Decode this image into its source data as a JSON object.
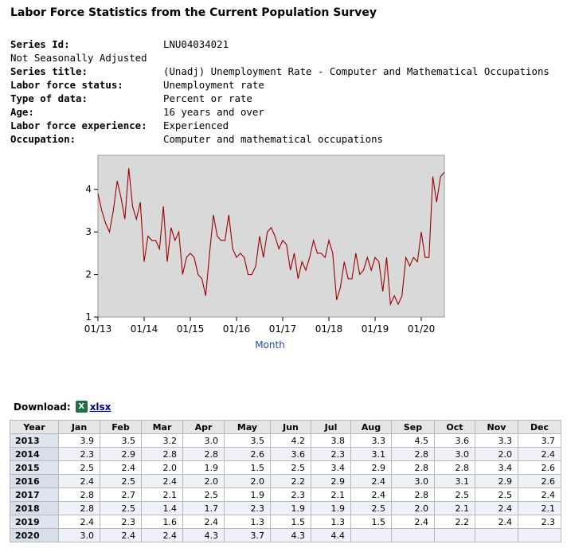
{
  "page_title": "Labor Force Statistics from the Current Population Survey",
  "series": {
    "series_id_label": "Series Id:",
    "series_id": "LNU04034021",
    "adjustment": "Not Seasonally Adjusted",
    "fields": [
      {
        "label": "Series title:",
        "value": "(Unadj) Unemployment Rate - Computer and Mathematical Occupations"
      },
      {
        "label": "Labor force status:",
        "value": "Unemployment rate"
      },
      {
        "label": "Type of data:",
        "value": "Percent or rate"
      },
      {
        "label": "Age:",
        "value": "16 years and over"
      },
      {
        "label": "Labor force experience:",
        "value": "Experienced"
      },
      {
        "label": "Occupation:",
        "value": "Computer and mathematical occupations"
      }
    ]
  },
  "chart_data": {
    "type": "line",
    "title": "",
    "xlabel": "Month",
    "ylabel": "",
    "ylim": [
      1,
      4.8
    ],
    "yticks": [
      "1",
      "2",
      "3",
      "4"
    ],
    "xticks": [
      "01/13",
      "01/14",
      "01/15",
      "01/16",
      "01/17",
      "01/18",
      "01/19",
      "01/20"
    ],
    "series": [
      {
        "name": "Unemployment rate",
        "color": "#990000",
        "values": [
          3.9,
          3.5,
          3.2,
          3.0,
          3.5,
          4.2,
          3.8,
          3.3,
          4.5,
          3.6,
          3.3,
          3.7,
          2.3,
          2.9,
          2.8,
          2.8,
          2.6,
          3.6,
          2.3,
          3.1,
          2.8,
          3.0,
          2.0,
          2.4,
          2.5,
          2.4,
          2.0,
          1.9,
          1.5,
          2.5,
          3.4,
          2.9,
          2.8,
          2.8,
          3.4,
          2.6,
          2.4,
          2.5,
          2.4,
          2.0,
          2.0,
          2.2,
          2.9,
          2.4,
          3.0,
          3.1,
          2.9,
          2.6,
          2.8,
          2.7,
          2.1,
          2.5,
          1.9,
          2.3,
          2.1,
          2.4,
          2.8,
          2.5,
          2.5,
          2.4,
          2.8,
          2.5,
          1.4,
          1.7,
          2.3,
          1.9,
          1.9,
          2.5,
          2.0,
          2.1,
          2.4,
          2.1,
          2.4,
          2.3,
          1.6,
          2.4,
          1.3,
          1.5,
          1.3,
          1.5,
          2.4,
          2.2,
          2.4,
          2.3,
          3.0,
          2.4,
          2.4,
          4.3,
          3.7,
          4.3,
          4.4
        ]
      }
    ]
  },
  "download": {
    "label": "Download:",
    "icon": "excel-icon",
    "link": "xlsx"
  },
  "table": {
    "headers": [
      "Year",
      "Jan",
      "Feb",
      "Mar",
      "Apr",
      "May",
      "Jun",
      "Jul",
      "Aug",
      "Sep",
      "Oct",
      "Nov",
      "Dec"
    ],
    "rows": [
      {
        "year": "2013",
        "values": [
          "3.9",
          "3.5",
          "3.2",
          "3.0",
          "3.5",
          "4.2",
          "3.8",
          "3.3",
          "4.5",
          "3.6",
          "3.3",
          "3.7"
        ]
      },
      {
        "year": "2014",
        "values": [
          "2.3",
          "2.9",
          "2.8",
          "2.8",
          "2.6",
          "3.6",
          "2.3",
          "3.1",
          "2.8",
          "3.0",
          "2.0",
          "2.4"
        ]
      },
      {
        "year": "2015",
        "values": [
          "2.5",
          "2.4",
          "2.0",
          "1.9",
          "1.5",
          "2.5",
          "3.4",
          "2.9",
          "2.8",
          "2.8",
          "3.4",
          "2.6"
        ]
      },
      {
        "year": "2016",
        "values": [
          "2.4",
          "2.5",
          "2.4",
          "2.0",
          "2.0",
          "2.2",
          "2.9",
          "2.4",
          "3.0",
          "3.1",
          "2.9",
          "2.6"
        ]
      },
      {
        "year": "2017",
        "values": [
          "2.8",
          "2.7",
          "2.1",
          "2.5",
          "1.9",
          "2.3",
          "2.1",
          "2.4",
          "2.8",
          "2.5",
          "2.5",
          "2.4"
        ]
      },
      {
        "year": "2018",
        "values": [
          "2.8",
          "2.5",
          "1.4",
          "1.7",
          "2.3",
          "1.9",
          "1.9",
          "2.5",
          "2.0",
          "2.1",
          "2.4",
          "2.1"
        ]
      },
      {
        "year": "2019",
        "values": [
          "2.4",
          "2.3",
          "1.6",
          "2.4",
          "1.3",
          "1.5",
          "1.3",
          "1.5",
          "2.4",
          "2.2",
          "2.4",
          "2.3"
        ]
      },
      {
        "year": "2020",
        "values": [
          "3.0",
          "2.4",
          "2.4",
          "4.3",
          "3.7",
          "4.3",
          "4.4",
          "",
          "",
          "",
          "",
          ""
        ]
      }
    ]
  }
}
